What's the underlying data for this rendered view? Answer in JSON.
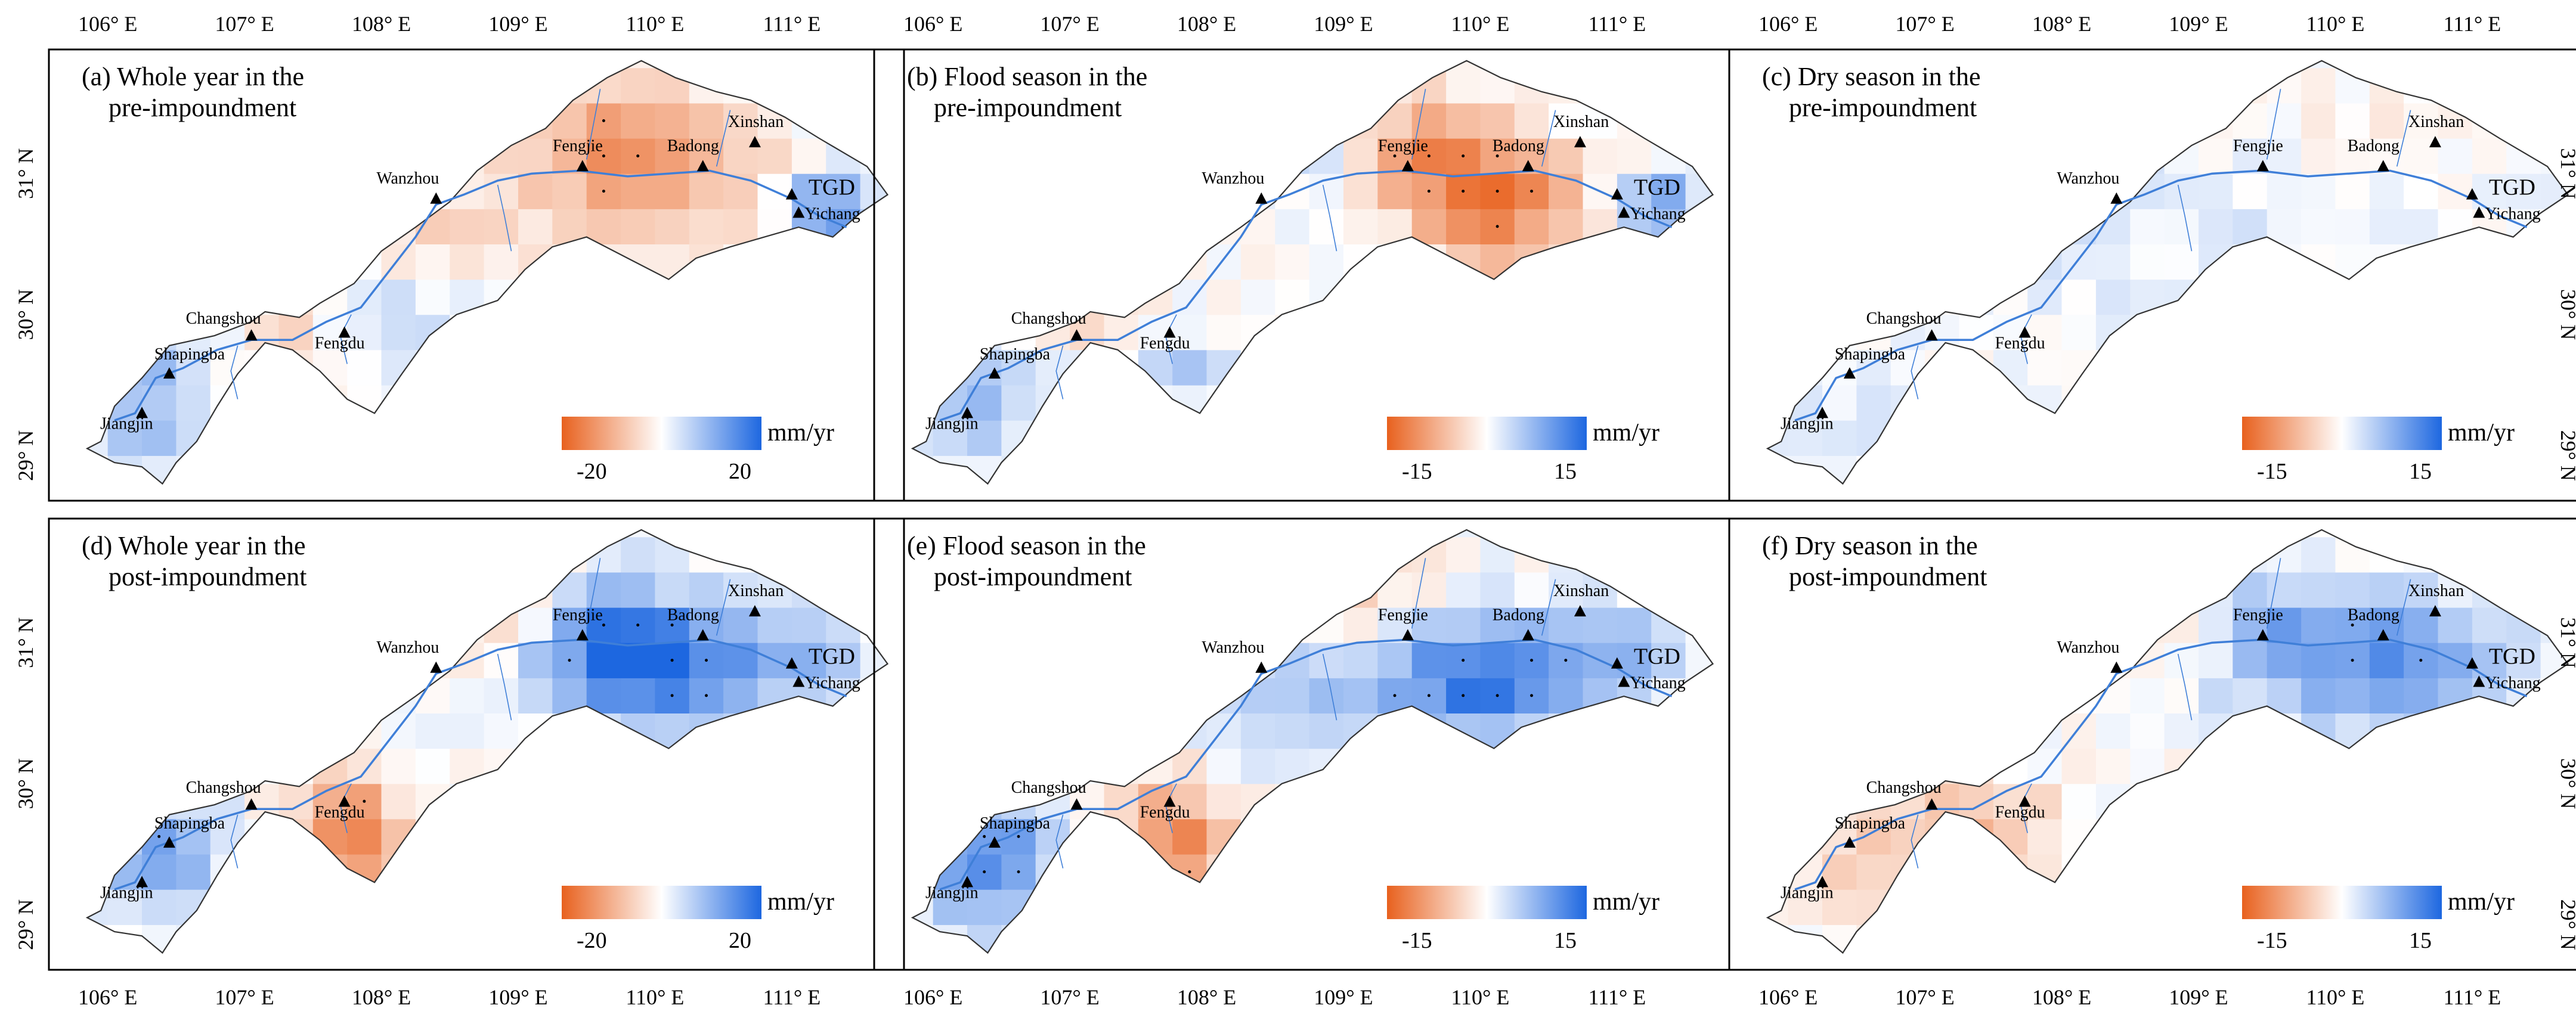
{
  "figure": {
    "lon_top_labels": [
      [
        "106° E",
        "107° E",
        "108° E",
        "109° E",
        "110° E",
        "111° E"
      ],
      [
        "106° E",
        "107° E",
        "108° E",
        "109° E",
        "110° E",
        "111° E"
      ],
      [
        "106° E",
        "107° E",
        "108° E",
        "109° E",
        "110° E",
        "111° E"
      ]
    ],
    "lon_bottom_labels": [
      [
        "106° E",
        "107° E",
        "108° E",
        "109° E",
        "110° E",
        "111° E"
      ],
      [
        "106° E",
        "107° E",
        "108° E",
        "109° E",
        "110° E",
        "111° E"
      ],
      [
        "106° E",
        "107° E",
        "108° E",
        "109° E",
        "110° E",
        "111° E"
      ]
    ],
    "lat_left_labels": [
      [
        "31° N",
        "30° N",
        "29° N"
      ],
      [
        "31° N",
        "30° N",
        "29° N"
      ]
    ],
    "lat_right_labels": [
      [
        "31° N",
        "30° N",
        "29° N"
      ],
      [
        "31° N",
        "30° N",
        "29° N"
      ]
    ]
  },
  "panels": [
    {
      "title1": "(a) Whole year in the",
      "title2": "pre-impoundment",
      "unit": "mm/yr",
      "min_label": "-20",
      "max_label": "20",
      "vmax": 20,
      "labels_full": true,
      "flood": false,
      "stations": [
        "Fengjie",
        "Badong",
        "Xinshan",
        "TGD",
        "Yichang",
        "Wanzhou",
        "Changshou",
        "Shapingba",
        "Fengdu",
        "Jiangjin"
      ]
    },
    {
      "title1": "(b) Flood season in the",
      "title2": "pre-impoundment",
      "unit": "mm/yr",
      "min_label": "-15",
      "max_label": "15",
      "vmax": 15,
      "labels_full": true,
      "flood": true,
      "stations": [
        "Fengjie",
        "Badong",
        "Xinshan",
        "TGD",
        "Yichang",
        "Wanzhou",
        "Changshou",
        "Shapingba",
        "Fengdu",
        "Jiangjin"
      ]
    },
    {
      "title1": "(c) Dry season in the",
      "title2": "pre-impoundment",
      "unit": "mm/yr",
      "min_label": "-15",
      "max_label": "15",
      "vmax": 15,
      "labels_full": false,
      "flood": false,
      "stations": [
        "Fengjie",
        "Badong",
        "Xinshan",
        "TGD",
        "Yichang",
        "Wanzhou",
        "Changshou",
        "Shapingba",
        "Fengdu",
        "Jiangjin"
      ]
    },
    {
      "title1": "(d) Whole year in the",
      "title2": "post-impoundment",
      "unit": "mm/yr",
      "min_label": "-20",
      "max_label": "20",
      "vmax": 20,
      "labels_full": true,
      "flood": false,
      "stations": [
        "Fengjie",
        "Badong",
        "Xinshan",
        "TGD",
        "Yichang",
        "Wanzhou",
        "Changshou",
        "Shapingba",
        "Fengdu",
        "Jiangjin"
      ]
    },
    {
      "title1": "(e) Flood season in the",
      "title2": "post-impoundment",
      "unit": "mm/yr",
      "min_label": "-15",
      "max_label": "15",
      "vmax": 15,
      "labels_full": true,
      "flood": true,
      "stations": [
        "Fengjie",
        "Badong",
        "Xinshan",
        "TGD",
        "Yichang",
        "Wanzhou",
        "Changshou",
        "Shapingba",
        "Fengdu",
        "Jiangjin"
      ]
    },
    {
      "title1": "(f) Dry season in the",
      "title2": "post-impoundment",
      "unit": "mm/yr",
      "min_label": "-15",
      "max_label": "15",
      "vmax": 15,
      "labels_full": false,
      "flood": false,
      "stations": [
        "Fengjie",
        "Badong",
        "Xinshan",
        "TGD",
        "Yichang",
        "Wanzhou",
        "Changshou",
        "Shapingba",
        "Fengdu",
        "Jiangjin"
      ]
    }
  ],
  "colors": {
    "negative": "#e8611e",
    "neutral": "#ffffff",
    "positive": "#1d67e0",
    "river": "#3f7fd8",
    "outline": "#333333",
    "frame": "#000000"
  }
}
